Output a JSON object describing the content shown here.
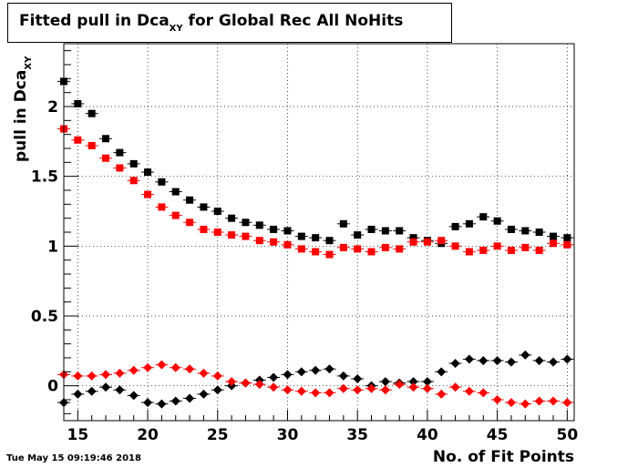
{
  "title": {
    "prefix": "Fitted pull in Dca",
    "sub": "XY",
    "suffix": " for Global Rec All NoHits"
  },
  "timestamp": "Tue May 15 09:19:46 2018",
  "chart_data": {
    "type": "scatter",
    "xlabel": "No. of Fit Points",
    "ylabel": {
      "prefix": "pull in Dca",
      "sub": "XY"
    },
    "xlim": [
      14,
      50.5
    ],
    "ylim": [
      -0.25,
      2.45
    ],
    "xticks": [
      15,
      20,
      25,
      30,
      35,
      40,
      45,
      50
    ],
    "yticks": [
      0,
      0.5,
      1,
      1.5,
      2
    ],
    "ytick_labels": [
      "0",
      "0.5",
      "1",
      "1.5",
      "2"
    ],
    "grid": true,
    "legend": "none",
    "x": [
      14,
      15,
      16,
      17,
      18,
      19,
      20,
      21,
      22,
      23,
      24,
      25,
      26,
      27,
      28,
      29,
      30,
      31,
      32,
      33,
      34,
      35,
      36,
      37,
      38,
      39,
      40,
      41,
      42,
      43,
      44,
      45,
      46,
      47,
      48,
      49,
      50
    ],
    "series": [
      {
        "marker": "square",
        "color": "#000000",
        "values": [
          2.18,
          2.02,
          1.95,
          1.77,
          1.67,
          1.59,
          1.53,
          1.46,
          1.39,
          1.33,
          1.28,
          1.25,
          1.2,
          1.17,
          1.15,
          1.12,
          1.11,
          1.07,
          1.06,
          1.04,
          1.16,
          1.08,
          1.12,
          1.11,
          1.11,
          1.06,
          1.04,
          1.02,
          1.14,
          1.16,
          1.21,
          1.18,
          1.12,
          1.11,
          1.1,
          1.07,
          1.06
        ]
      },
      {
        "marker": "square",
        "color": "#ff0000",
        "values": [
          1.84,
          1.76,
          1.72,
          1.63,
          1.56,
          1.47,
          1.37,
          1.28,
          1.22,
          1.17,
          1.12,
          1.1,
          1.08,
          1.07,
          1.04,
          1.03,
          1.01,
          0.98,
          0.96,
          0.94,
          0.99,
          0.98,
          0.96,
          0.99,
          0.98,
          1.03,
          1.03,
          1.04,
          1.0,
          0.96,
          0.97,
          1.0,
          0.97,
          0.99,
          0.97,
          1.02,
          1.01
        ]
      },
      {
        "marker": "diamond",
        "color": "#000000",
        "values": [
          -0.12,
          -0.06,
          -0.04,
          -0.01,
          -0.03,
          -0.07,
          -0.12,
          -0.13,
          -0.11,
          -0.09,
          -0.06,
          -0.03,
          0.0,
          0.02,
          0.04,
          0.06,
          0.08,
          0.1,
          0.11,
          0.12,
          0.07,
          0.05,
          0.0,
          0.03,
          0.02,
          0.03,
          0.03,
          0.1,
          0.16,
          0.19,
          0.18,
          0.18,
          0.17,
          0.22,
          0.18,
          0.17,
          0.19
        ]
      },
      {
        "marker": "diamond",
        "color": "#ff0000",
        "values": [
          0.08,
          0.07,
          0.07,
          0.08,
          0.09,
          0.11,
          0.13,
          0.15,
          0.13,
          0.12,
          0.09,
          0.07,
          0.03,
          0.02,
          0.01,
          -0.01,
          -0.03,
          -0.04,
          -0.05,
          -0.05,
          -0.02,
          -0.03,
          -0.02,
          -0.03,
          0.01,
          -0.01,
          -0.02,
          -0.06,
          -0.01,
          -0.04,
          -0.05,
          -0.1,
          -0.12,
          -0.13,
          -0.11,
          -0.11,
          -0.12
        ]
      }
    ]
  }
}
